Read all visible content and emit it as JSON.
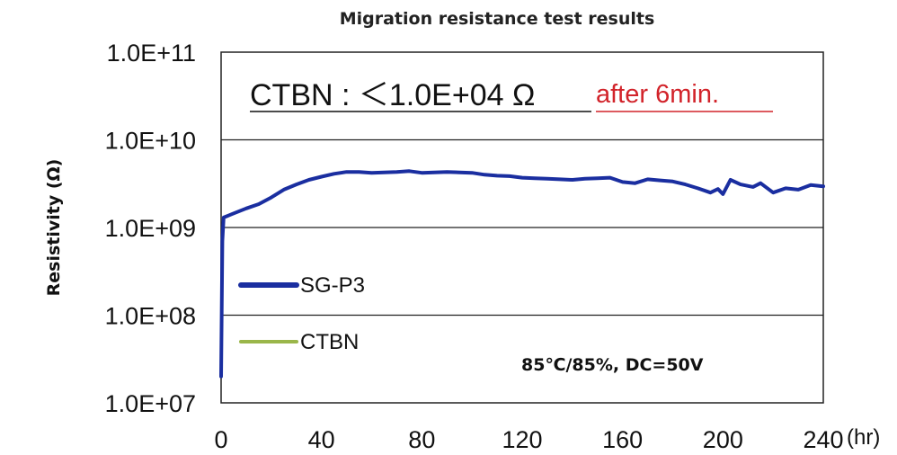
{
  "chart_data": {
    "type": "line",
    "title": "Migration resistance test results",
    "ylabel": "Resistivity (Ω)",
    "xunit": "(hr)",
    "xlim": [
      0,
      240
    ],
    "ylim": [
      10000000,
      100000000000
    ],
    "yscale": "log",
    "x_ticks": [
      0,
      40,
      80,
      120,
      160,
      200,
      240
    ],
    "y_ticks": [
      10000000,
      100000000,
      1000000000,
      10000000000,
      100000000000
    ],
    "y_tick_labels": [
      "1.0E+07",
      "1.0E+08",
      "1.0E+09",
      "1.0E+10",
      "1.0E+11"
    ],
    "grid": "horizontal",
    "legend_position": "left-inside",
    "annotation": {
      "main": "CTBN : ＜1.0E+04 Ω",
      "highlight": "after 6min."
    },
    "condition": "85℃/85%, DC=50V",
    "series": [
      {
        "name": "SG-P3",
        "color": "#1a2ea0",
        "x": [
          0,
          0.5,
          1,
          5,
          10,
          15,
          20,
          25,
          30,
          35,
          40,
          45,
          50,
          55,
          60,
          65,
          70,
          75,
          80,
          85,
          90,
          95,
          100,
          105,
          110,
          115,
          120,
          125,
          130,
          135,
          140,
          145,
          150,
          155,
          160,
          165,
          170,
          175,
          180,
          185,
          190,
          195,
          198,
          200,
          203,
          207,
          212,
          215,
          220,
          225,
          230,
          235,
          240
        ],
        "y": [
          20000000,
          700000000,
          1300000000,
          1450000000,
          1650000000,
          1850000000,
          2200000000,
          2700000000,
          3100000000,
          3500000000,
          3800000000,
          4100000000,
          4300000000,
          4300000000,
          4200000000,
          4250000000,
          4300000000,
          4400000000,
          4200000000,
          4250000000,
          4300000000,
          4250000000,
          4200000000,
          4000000000,
          3900000000,
          3850000000,
          3700000000,
          3650000000,
          3600000000,
          3550000000,
          3500000000,
          3600000000,
          3650000000,
          3700000000,
          3300000000,
          3200000000,
          3550000000,
          3450000000,
          3350000000,
          3100000000,
          2800000000,
          2500000000,
          2750000000,
          2400000000,
          3500000000,
          3100000000,
          2900000000,
          3200000000,
          2500000000,
          2800000000,
          2700000000,
          3050000000,
          2950000000
        ]
      },
      {
        "name": "CTBN",
        "color": "#9ab64a",
        "x": [],
        "y": []
      }
    ]
  }
}
